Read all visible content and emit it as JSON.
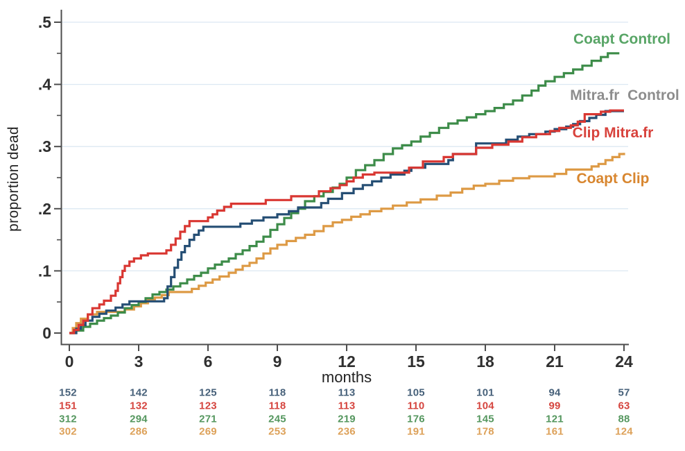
{
  "axes": {
    "y_title": "proportion dead",
    "x_title": "months",
    "y_ticks": [
      {
        "value": 0.0,
        "label": "0"
      },
      {
        "value": 0.1,
        "label": ".1"
      },
      {
        "value": 0.2,
        "label": ".2"
      },
      {
        "value": 0.3,
        "label": ".3"
      },
      {
        "value": 0.4,
        "label": ".4"
      },
      {
        "value": 0.5,
        "label": ".5"
      }
    ],
    "y_minor_ticks": [
      0.05,
      0.15,
      0.25,
      0.35,
      0.45
    ],
    "x_ticks": [
      0,
      3,
      6,
      9,
      12,
      15,
      18,
      21,
      24
    ],
    "grid_color": "#dce8f2",
    "axis_color": "#4d4d4d",
    "tick_label_color": "#2f2f2f"
  },
  "chart_data": {
    "type": "line",
    "subtype": "step-survival",
    "title": "",
    "xlabel": "months",
    "ylabel": "proportion dead",
    "xlim": [
      0,
      24
    ],
    "ylim": [
      0,
      0.5
    ],
    "grid": "horizontal-only",
    "legend_position": "right-inline",
    "series": [
      {
        "name": "Coapt Control",
        "label": "Coapt Control",
        "color": "#3d8c49",
        "label_color": "#58a566",
        "points": [
          [
            0,
            0
          ],
          [
            0.3,
            0.004
          ],
          [
            0.6,
            0.01
          ],
          [
            0.9,
            0.015
          ],
          [
            1.2,
            0.02
          ],
          [
            1.5,
            0.024
          ],
          [
            1.8,
            0.028
          ],
          [
            2.1,
            0.033
          ],
          [
            2.4,
            0.04
          ],
          [
            2.7,
            0.045
          ],
          [
            3,
            0.05
          ],
          [
            3.3,
            0.056
          ],
          [
            3.6,
            0.062
          ],
          [
            3.9,
            0.066
          ],
          [
            4.2,
            0.07
          ],
          [
            4.5,
            0.075
          ],
          [
            4.8,
            0.08
          ],
          [
            5.1,
            0.086
          ],
          [
            5.4,
            0.092
          ],
          [
            5.7,
            0.097
          ],
          [
            6,
            0.104
          ],
          [
            6.3,
            0.11
          ],
          [
            6.6,
            0.115
          ],
          [
            6.9,
            0.12
          ],
          [
            7.2,
            0.127
          ],
          [
            7.5,
            0.133
          ],
          [
            7.8,
            0.14
          ],
          [
            8.1,
            0.147
          ],
          [
            8.4,
            0.155
          ],
          [
            8.7,
            0.166
          ],
          [
            9,
            0.175
          ],
          [
            9.3,
            0.185
          ],
          [
            9.6,
            0.193
          ],
          [
            9.9,
            0.2
          ],
          [
            10.2,
            0.212
          ],
          [
            10.6,
            0.22
          ],
          [
            11,
            0.227
          ],
          [
            11.4,
            0.234
          ],
          [
            11.7,
            0.24
          ],
          [
            12,
            0.25
          ],
          [
            12.4,
            0.262
          ],
          [
            12.8,
            0.27
          ],
          [
            13.2,
            0.278
          ],
          [
            13.6,
            0.288
          ],
          [
            14,
            0.297
          ],
          [
            14.4,
            0.302
          ],
          [
            14.8,
            0.308
          ],
          [
            15.2,
            0.316
          ],
          [
            15.6,
            0.322
          ],
          [
            16,
            0.33
          ],
          [
            16.4,
            0.337
          ],
          [
            16.8,
            0.342
          ],
          [
            17.2,
            0.347
          ],
          [
            17.6,
            0.352
          ],
          [
            18,
            0.357
          ],
          [
            18.4,
            0.362
          ],
          [
            18.8,
            0.368
          ],
          [
            19.2,
            0.374
          ],
          [
            19.6,
            0.382
          ],
          [
            20,
            0.39
          ],
          [
            20.3,
            0.398
          ],
          [
            20.6,
            0.405
          ],
          [
            21,
            0.412
          ],
          [
            21.4,
            0.418
          ],
          [
            21.8,
            0.424
          ],
          [
            22.2,
            0.43
          ],
          [
            22.6,
            0.438
          ],
          [
            23,
            0.444
          ],
          [
            23.3,
            0.45
          ],
          [
            23.8,
            0.45
          ]
        ]
      },
      {
        "name": "Mitra.fr Control",
        "label": "Mitra.fr  Control",
        "color": "#254e74",
        "label_color": "#8d8d8d",
        "points": [
          [
            0,
            0
          ],
          [
            0.3,
            0.007
          ],
          [
            0.5,
            0.013
          ],
          [
            0.7,
            0.02
          ],
          [
            1,
            0.026
          ],
          [
            1.3,
            0.031
          ],
          [
            1.6,
            0.036
          ],
          [
            2,
            0.041
          ],
          [
            2.3,
            0.046
          ],
          [
            2.6,
            0.051
          ],
          [
            4.1,
            0.056
          ],
          [
            4.25,
            0.075
          ],
          [
            4.4,
            0.09
          ],
          [
            4.55,
            0.105
          ],
          [
            4.7,
            0.118
          ],
          [
            4.85,
            0.13
          ],
          [
            5,
            0.14
          ],
          [
            5.2,
            0.15
          ],
          [
            5.4,
            0.158
          ],
          [
            5.6,
            0.165
          ],
          [
            5.8,
            0.171
          ],
          [
            7.4,
            0.176
          ],
          [
            7.9,
            0.181
          ],
          [
            8.4,
            0.186
          ],
          [
            9,
            0.191
          ],
          [
            9.5,
            0.196
          ],
          [
            9.9,
            0.202
          ],
          [
            10.9,
            0.209
          ],
          [
            11.2,
            0.216
          ],
          [
            11.8,
            0.225
          ],
          [
            12.3,
            0.232
          ],
          [
            12.7,
            0.238
          ],
          [
            13.1,
            0.244
          ],
          [
            13.5,
            0.25
          ],
          [
            13.9,
            0.255
          ],
          [
            14.5,
            0.261
          ],
          [
            14.8,
            0.266
          ],
          [
            15.4,
            0.272
          ],
          [
            16.4,
            0.278
          ],
          [
            16.6,
            0.288
          ],
          [
            17.6,
            0.305
          ],
          [
            18.9,
            0.311
          ],
          [
            19.4,
            0.316
          ],
          [
            19.9,
            0.32
          ],
          [
            20.6,
            0.324
          ],
          [
            21,
            0.328
          ],
          [
            21.5,
            0.332
          ],
          [
            21.8,
            0.336
          ],
          [
            22.1,
            0.341
          ],
          [
            22.5,
            0.346
          ],
          [
            22.8,
            0.351
          ],
          [
            23.2,
            0.357
          ],
          [
            24,
            0.357
          ]
        ]
      },
      {
        "name": "Clip Mitra.fr",
        "label": "Clip Mitra.fr",
        "color": "#d93732",
        "label_color": "#d8423c",
        "points": [
          [
            0,
            0
          ],
          [
            0.2,
            0.005
          ],
          [
            0.4,
            0.013
          ],
          [
            0.6,
            0.02
          ],
          [
            0.8,
            0.03
          ],
          [
            1,
            0.04
          ],
          [
            1.3,
            0.046
          ],
          [
            1.5,
            0.052
          ],
          [
            1.8,
            0.06
          ],
          [
            2,
            0.068
          ],
          [
            2.1,
            0.08
          ],
          [
            2.2,
            0.09
          ],
          [
            2.3,
            0.1
          ],
          [
            2.4,
            0.108
          ],
          [
            2.6,
            0.115
          ],
          [
            2.8,
            0.12
          ],
          [
            3.1,
            0.125
          ],
          [
            3.4,
            0.128
          ],
          [
            4.2,
            0.133
          ],
          [
            4.4,
            0.142
          ],
          [
            4.6,
            0.152
          ],
          [
            4.8,
            0.163
          ],
          [
            5,
            0.172
          ],
          [
            5.2,
            0.18
          ],
          [
            6,
            0.186
          ],
          [
            6.2,
            0.191
          ],
          [
            6.4,
            0.197
          ],
          [
            6.7,
            0.203
          ],
          [
            7,
            0.208
          ],
          [
            8.5,
            0.214
          ],
          [
            9.6,
            0.22
          ],
          [
            10.8,
            0.228
          ],
          [
            11.3,
            0.233
          ],
          [
            11.7,
            0.238
          ],
          [
            12,
            0.244
          ],
          [
            12.3,
            0.25
          ],
          [
            12.7,
            0.255
          ],
          [
            13.2,
            0.258
          ],
          [
            14.7,
            0.266
          ],
          [
            15.3,
            0.276
          ],
          [
            16.2,
            0.283
          ],
          [
            16.6,
            0.288
          ],
          [
            17.6,
            0.298
          ],
          [
            18.3,
            0.303
          ],
          [
            19,
            0.308
          ],
          [
            19.6,
            0.315
          ],
          [
            20.2,
            0.32
          ],
          [
            20.8,
            0.325
          ],
          [
            21.2,
            0.33
          ],
          [
            21.7,
            0.334
          ],
          [
            22,
            0.34
          ],
          [
            22.3,
            0.352
          ],
          [
            23,
            0.356
          ],
          [
            23.4,
            0.358
          ],
          [
            24,
            0.358
          ]
        ]
      },
      {
        "name": "Coapt Clip",
        "label": "Coapt Clip",
        "color": "#dd9a45",
        "label_color": "#d8862f",
        "points": [
          [
            0,
            0
          ],
          [
            0.15,
            0.008
          ],
          [
            0.3,
            0.016
          ],
          [
            0.5,
            0.023
          ],
          [
            0.8,
            0.03
          ],
          [
            1.2,
            0.034
          ],
          [
            2.4,
            0.038
          ],
          [
            2.8,
            0.043
          ],
          [
            3.1,
            0.048
          ],
          [
            3.4,
            0.053
          ],
          [
            3.7,
            0.057
          ],
          [
            4,
            0.061
          ],
          [
            4.3,
            0.066
          ],
          [
            5.3,
            0.071
          ],
          [
            5.6,
            0.076
          ],
          [
            5.9,
            0.081
          ],
          [
            6.2,
            0.086
          ],
          [
            6.5,
            0.091
          ],
          [
            6.9,
            0.097
          ],
          [
            7.2,
            0.102
          ],
          [
            7.5,
            0.108
          ],
          [
            7.8,
            0.113
          ],
          [
            8.1,
            0.12
          ],
          [
            8.4,
            0.128
          ],
          [
            8.7,
            0.136
          ],
          [
            9,
            0.142
          ],
          [
            9.4,
            0.148
          ],
          [
            9.8,
            0.153
          ],
          [
            10.2,
            0.158
          ],
          [
            10.6,
            0.164
          ],
          [
            11,
            0.172
          ],
          [
            11.4,
            0.178
          ],
          [
            11.8,
            0.182
          ],
          [
            12.2,
            0.187
          ],
          [
            12.6,
            0.191
          ],
          [
            13,
            0.196
          ],
          [
            13.5,
            0.2
          ],
          [
            14,
            0.205
          ],
          [
            14.6,
            0.21
          ],
          [
            15.2,
            0.215
          ],
          [
            15.9,
            0.221
          ],
          [
            16.5,
            0.226
          ],
          [
            17,
            0.232
          ],
          [
            17.5,
            0.237
          ],
          [
            18,
            0.24
          ],
          [
            18.6,
            0.245
          ],
          [
            19.2,
            0.249
          ],
          [
            19.9,
            0.252
          ],
          [
            21,
            0.256
          ],
          [
            21.5,
            0.263
          ],
          [
            22.6,
            0.268
          ],
          [
            22.9,
            0.272
          ],
          [
            23.2,
            0.278
          ],
          [
            23.5,
            0.283
          ],
          [
            23.8,
            0.288
          ],
          [
            24,
            0.29
          ]
        ]
      }
    ]
  },
  "risk_table": {
    "months": [
      0,
      3,
      6,
      9,
      12,
      15,
      18,
      21,
      24
    ],
    "rows": [
      {
        "series": "Mitra.fr Control",
        "color": "#47617a",
        "values": [
          152,
          142,
          125,
          118,
          113,
          105,
          101,
          94,
          57
        ]
      },
      {
        "series": "Clip Mitra.fr",
        "color": "#d5453f",
        "values": [
          151,
          132,
          123,
          118,
          113,
          110,
          104,
          99,
          63
        ]
      },
      {
        "series": "Coapt Control",
        "color": "#55975f",
        "values": [
          312,
          294,
          271,
          245,
          219,
          176,
          145,
          121,
          88
        ]
      },
      {
        "series": "Coapt Clip",
        "color": "#dda159",
        "values": [
          302,
          286,
          269,
          253,
          236,
          191,
          178,
          161,
          124
        ]
      }
    ]
  }
}
